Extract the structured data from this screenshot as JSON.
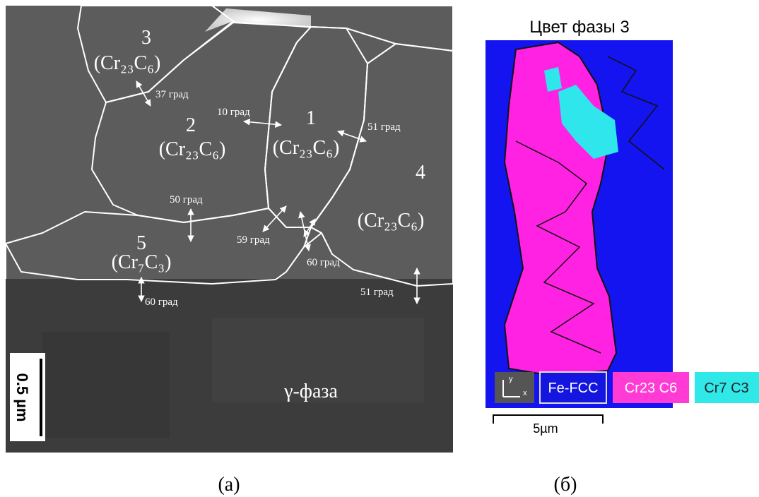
{
  "panel_a": {
    "grains": [
      {
        "number": "3",
        "phase": "(Cr₂₃C₆)"
      },
      {
        "number": "2",
        "phase": "(Cr₂₃C₆)"
      },
      {
        "number": "1",
        "phase": "(Cr₂₃C₆)"
      },
      {
        "number": "4",
        "phase": "(Cr₂₃C₆)"
      },
      {
        "number": "5",
        "phase": "(Cr₇C₃)"
      }
    ],
    "angles": [
      "37 град",
      "10 град",
      "51 град",
      "50 град",
      "59 град",
      "60 град",
      "60 град",
      "51 град"
    ],
    "scale_bar": "0.5 µm",
    "matrix_label": "γ-фаза",
    "caption": "(а)"
  },
  "panel_b": {
    "title": "Цвет фазы 3",
    "axis_labels": [
      "y",
      "x"
    ],
    "legend": [
      "Fe-FCC",
      "Cr23 C6",
      "Cr7 C3"
    ],
    "scale_bar": "5µm",
    "caption": "(б)"
  }
}
